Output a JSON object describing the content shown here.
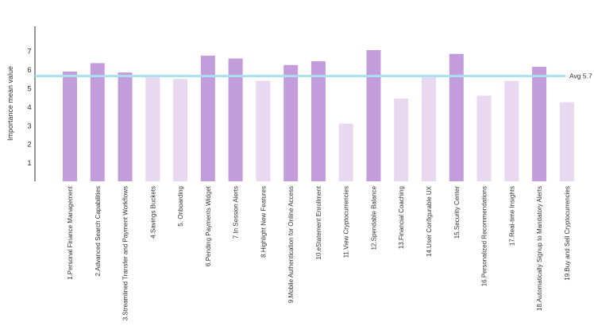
{
  "chart_data": {
    "type": "bar",
    "ylabel": "Importance mean value",
    "xlabel": "",
    "ylim": [
      0,
      8.5
    ],
    "yticks": [
      1,
      2,
      3,
      4,
      5,
      6,
      7
    ],
    "grid": false,
    "categories": [
      "1.Personal Finance Management",
      "2.Advanced Search Capabilities",
      "3.Streamlined Transfer and Payment Workflows",
      "4.Savings Buckets",
      "5. Onboarding",
      "6.Pending Payments Widget",
      "7.In Session Alerts",
      "8.Highlight New Features",
      "9.Mobile Authentication for Online Access",
      "10.eStatement Enrollment",
      "11.View Cryptocurrencies",
      "12.Spendable Balance",
      "13.Financial Coaching",
      "14.User Configurable UX",
      "15.Security Center",
      "16.Personalized Recommendations",
      "17.Real-time Insights",
      "18.Automatically Signup to Mandatory Alerts",
      "19.Buy and Sell Cryptocurrencies"
    ],
    "values": [
      5.9,
      6.35,
      5.85,
      5.6,
      5.5,
      6.75,
      6.6,
      5.4,
      6.25,
      6.45,
      3.1,
      7.05,
      4.45,
      5.65,
      6.85,
      4.6,
      5.4,
      6.15,
      4.25
    ],
    "above_average": [
      true,
      true,
      true,
      false,
      false,
      true,
      true,
      false,
      true,
      true,
      false,
      true,
      false,
      false,
      true,
      false,
      false,
      true,
      false
    ],
    "average": {
      "value": 5.7,
      "label": "Avg 5.7"
    },
    "colors": {
      "above": "#c39cdc",
      "below": "#e8d8f0",
      "average_line": "#a9e0ef",
      "axis": "#333333"
    }
  }
}
